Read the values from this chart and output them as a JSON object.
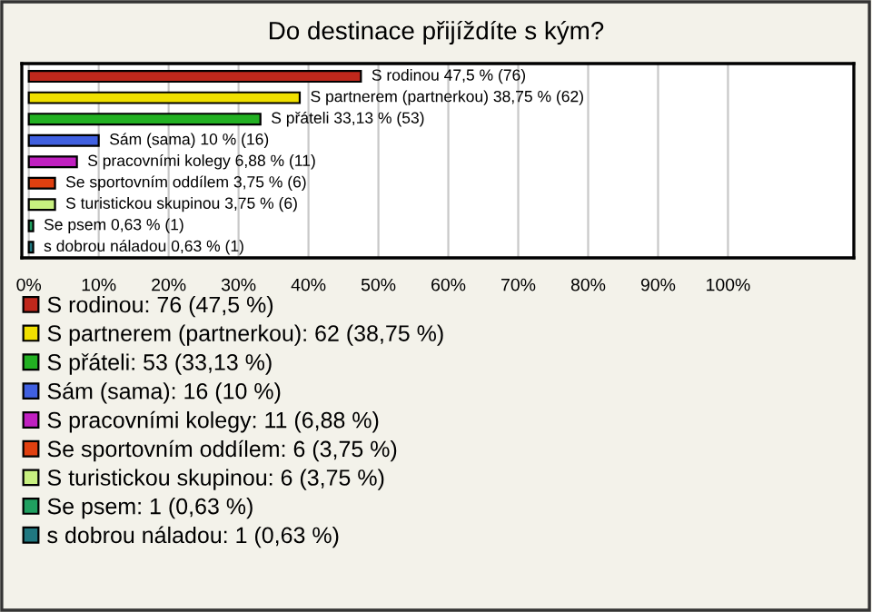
{
  "chart_data": {
    "type": "bar",
    "orientation": "horizontal",
    "title": "Do destinace přijíždíte s kým?",
    "categories": [
      null,
      null,
      null,
      null,
      null,
      null,
      null,
      null,
      null
    ],
    "series": [
      {
        "name": "S rodinou: 76 (47,5 %)",
        "color": "#c0281c",
        "values": [
          47.5,
          null,
          null,
          null,
          null,
          null,
          null,
          null,
          null
        ],
        "value_labels": [
          "S rodinou 47,5 % (76)",
          null,
          null,
          null,
          null,
          null,
          null,
          null,
          null
        ]
      },
      {
        "name": "S partnerem (partnerkou): 62 (38,75 %)",
        "color": "#f0e000",
        "values": [
          null,
          38.75,
          null,
          null,
          null,
          null,
          null,
          null,
          null
        ],
        "value_labels": [
          null,
          "S partnerem (partnerkou) 38,75 % (62)",
          null,
          null,
          null,
          null,
          null,
          null,
          null
        ]
      },
      {
        "name": "S přáteli: 53 (33,13 %)",
        "color": "#22b022",
        "values": [
          null,
          null,
          33.13,
          null,
          null,
          null,
          null,
          null,
          null
        ],
        "value_labels": [
          null,
          null,
          "S přáteli 33,13 % (53)",
          null,
          null,
          null,
          null,
          null,
          null
        ]
      },
      {
        "name": "Sám (sama): 16 (10 %)",
        "color": "#4060e0",
        "values": [
          null,
          null,
          null,
          10,
          null,
          null,
          null,
          null,
          null
        ],
        "value_labels": [
          null,
          null,
          null,
          "Sám (sama) 10 % (16)",
          null,
          null,
          null,
          null,
          null
        ]
      },
      {
        "name": "S pracovními kolegy: 11 (6,88 %)",
        "color": "#c020c0",
        "values": [
          null,
          null,
          null,
          null,
          6.88,
          null,
          null,
          null,
          null
        ],
        "value_labels": [
          null,
          null,
          null,
          null,
          "S pracovními kolegy 6,88 % (11)",
          null,
          null,
          null,
          null
        ]
      },
      {
        "name": "Se sportovním oddílem: 6 (3,75 %)",
        "color": "#e04010",
        "values": [
          null,
          null,
          null,
          null,
          null,
          3.75,
          null,
          null,
          null
        ],
        "value_labels": [
          null,
          null,
          null,
          null,
          null,
          "Se sportovním oddílem 3,75 % (6)",
          null,
          null,
          null
        ]
      },
      {
        "name": "S turistickou skupinou: 6 (3,75 %)",
        "color": "#c8f080",
        "values": [
          null,
          null,
          null,
          null,
          null,
          null,
          3.75,
          null,
          null
        ],
        "value_labels": [
          null,
          null,
          null,
          null,
          null,
          null,
          "S turistickou skupinou 3,75 % (6)",
          null,
          null
        ]
      },
      {
        "name": "Se psem: 1 (0,63 %)",
        "color": "#20a060",
        "values": [
          null,
          null,
          null,
          null,
          null,
          null,
          null,
          0.63,
          null
        ],
        "value_labels": [
          null,
          null,
          null,
          null,
          null,
          null,
          null,
          "Se psem 0,63 % (1)",
          null
        ]
      },
      {
        "name": "s dobrou náladou: 1 (0,63 %)",
        "color": "#207880",
        "values": [
          null,
          null,
          null,
          null,
          null,
          null,
          null,
          null,
          0.63
        ],
        "value_labels": [
          null,
          null,
          null,
          null,
          null,
          null,
          null,
          null,
          "s dobrou náladou 0,63 % (1)"
        ]
      }
    ],
    "xlim": [
      -1,
      118
    ],
    "xticks": [
      {
        "value": 0,
        "label": "0%"
      },
      {
        "value": 10,
        "label": "10%"
      },
      {
        "value": 20,
        "label": "20%"
      },
      {
        "value": 30,
        "label": "30%"
      },
      {
        "value": 40,
        "label": "40%"
      },
      {
        "value": 50,
        "label": "50%"
      },
      {
        "value": 60,
        "label": "60%"
      },
      {
        "value": 70,
        "label": "70%"
      },
      {
        "value": 80,
        "label": "80%"
      },
      {
        "value": 90,
        "label": "90%"
      },
      {
        "value": 100,
        "label": "100%"
      }
    ],
    "grid": "x",
    "legend": "bottom"
  }
}
